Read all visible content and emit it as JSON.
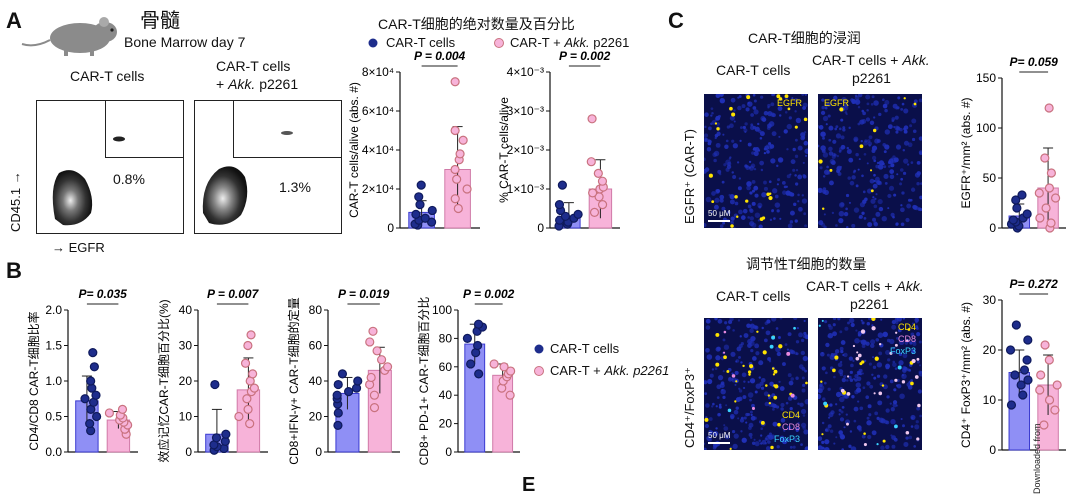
{
  "panels": {
    "A": "A",
    "B": "B",
    "C": "C",
    "E": "E"
  },
  "top": {
    "title_cn": "骨髓",
    "subtitle": "Bone Marrow day 7",
    "flow_col1": "CAR-T cells",
    "flow_col2_l1": "CAR-T cells",
    "flow_col2_l2_pre": "+ ",
    "flow_col2_l2_it": "Akk.",
    "flow_col2_l2_post": " p2261",
    "flow_pct1": "0.8%",
    "flow_pct2": "1.3%",
    "flow_yaxis": "CD45.1 →",
    "flow_xaxis": "→ EGFR"
  },
  "abs_title": "CAR-T细胞的绝对数量及百分比",
  "legend": {
    "carT": "CAR-T cells",
    "akk_pre": "CAR-T + ",
    "akk_it": "Akk.",
    "akk_post": " p2261",
    "akk_b_it": "Akk. p2261"
  },
  "colors": {
    "blue_bar": "#8f8ff5",
    "blue_dot": "#1e2d8c",
    "pink_bar": "#f7b3d9",
    "pink_dot": "#c9727f"
  },
  "chart_data": [
    {
      "id": "A1",
      "type": "bar",
      "ylabel": "CAR-T cells/alive (abs. #)",
      "pval": "P = 0.004",
      "yticks": [
        "0",
        "2×10⁴",
        "4×10⁴",
        "6×10⁴",
        "8×10⁴"
      ],
      "ylim": [
        0,
        80000
      ],
      "values": [
        8000,
        30000
      ],
      "errors": [
        6000,
        22000
      ],
      "points": [
        [
          1500,
          2000,
          3000,
          4000,
          5000,
          7000,
          9000,
          12000,
          16000,
          22000
        ],
        [
          10000,
          15000,
          20000,
          25000,
          30000,
          35000,
          38000,
          45000,
          50000,
          75000
        ]
      ]
    },
    {
      "id": "A2",
      "type": "bar",
      "ylabel": "% CAR-T cells/alive",
      "pval": "P = 0.002",
      "yticks": [
        "0",
        "1×10⁻³",
        "2×10⁻³",
        "3×10⁻³",
        "4×10⁻³"
      ],
      "ylim": [
        0,
        4
      ],
      "values": [
        0.3,
        1.0
      ],
      "errors": [
        0.35,
        0.75
      ],
      "points": [
        [
          0.05,
          0.1,
          0.15,
          0.2,
          0.25,
          0.3,
          0.35,
          0.45,
          0.6,
          1.1
        ],
        [
          0.4,
          0.6,
          0.8,
          0.9,
          1.0,
          1.05,
          1.2,
          1.4,
          1.7,
          2.8
        ]
      ]
    },
    {
      "id": "B1",
      "type": "bar",
      "ylabel": "CD4/CD8 CAR-T细胞比率",
      "pval": "P= 0.035",
      "yticks": [
        "0.0",
        "0.5",
        "1.0",
        "1.5",
        "2.0"
      ],
      "ylim": [
        0,
        2
      ],
      "values": [
        0.72,
        0.45
      ],
      "errors": [
        0.35,
        0.12
      ],
      "points": [
        [
          0.3,
          0.4,
          0.5,
          0.6,
          0.7,
          0.75,
          0.8,
          0.9,
          1.0,
          1.2,
          1.4
        ],
        [
          0.25,
          0.32,
          0.38,
          0.42,
          0.45,
          0.48,
          0.52,
          0.55,
          0.6
        ]
      ]
    },
    {
      "id": "B2",
      "type": "bar",
      "ylabel": "效应记忆CAR-T细胞百分比(%)",
      "pval": "P = 0.007",
      "yticks": [
        "0",
        "10",
        "20",
        "30",
        "40"
      ],
      "ylim": [
        0,
        40
      ],
      "values": [
        5,
        17.5
      ],
      "errors": [
        7,
        9
      ],
      "points": [
        [
          0.5,
          1,
          1.5,
          2,
          3,
          4,
          5,
          19
        ],
        [
          8,
          10,
          12,
          15,
          17,
          18,
          20,
          22,
          25,
          30,
          33
        ]
      ]
    },
    {
      "id": "B3",
      "type": "bar",
      "ylabel": "CD8+IFN-γ+ CAR-T细胞的定量",
      "pval": "P = 0.019",
      "yticks": [
        "0",
        "20",
        "40",
        "60",
        "80"
      ],
      "ylim": [
        0,
        80
      ],
      "values": [
        33,
        46
      ],
      "errors": [
        9,
        13
      ],
      "points": [
        [
          15,
          22,
          27,
          30,
          32,
          34,
          36,
          38,
          40,
          44
        ],
        [
          25,
          32,
          38,
          42,
          46,
          48,
          52,
          57,
          62,
          68
        ]
      ]
    },
    {
      "id": "B4",
      "type": "bar",
      "ylabel": "CD8+ PD-1+ CAR-T细胞百分比",
      "pval": "P = 0.002",
      "yticks": [
        "0",
        "20",
        "40",
        "60",
        "80",
        "100"
      ],
      "ylim": [
        0,
        100
      ],
      "values": [
        76,
        54
      ],
      "errors": [
        14,
        8
      ],
      "points": [
        [
          55,
          62,
          70,
          75,
          80,
          85,
          88,
          90
        ],
        [
          40,
          45,
          50,
          53,
          55,
          57,
          60,
          62
        ]
      ]
    },
    {
      "id": "C1",
      "type": "bar",
      "ylabel": "EGFR⁺/mm² (abs. #)",
      "pval": "P= 0.059",
      "yticks": [
        "0",
        "50",
        "100",
        "150"
      ],
      "ylim": [
        0,
        150
      ],
      "values": [
        12,
        40
      ],
      "errors": [
        12,
        40
      ],
      "points": [
        [
          0,
          2,
          4,
          6,
          8,
          10,
          14,
          20,
          28,
          33
        ],
        [
          0,
          5,
          10,
          20,
          30,
          35,
          40,
          55,
          70,
          120
        ]
      ]
    },
    {
      "id": "C2",
      "type": "bar",
      "ylabel": "CD4⁺ FoxP3⁺/mm² (abs. #)",
      "pval": "P= 0.272",
      "yticks": [
        "0",
        "10",
        "20",
        "30"
      ],
      "ylim": [
        0,
        30
      ],
      "values": [
        15.5,
        13
      ],
      "errors": [
        4.5,
        6
      ],
      "points": [
        [
          9,
          11,
          13,
          14,
          15,
          16,
          18,
          20,
          22,
          25
        ],
        [
          5,
          8,
          10,
          12,
          13,
          15,
          18,
          21
        ]
      ]
    }
  ],
  "c_section": {
    "title1": "CAR-T细胞的浸润",
    "col1": "CAR-T cells",
    "col2_l1": "CAR-T cells + ",
    "col2_it": "Akk.",
    "col2_l2": "p2261",
    "egfr": "EGFR",
    "row1_ylabel": "EGFR⁺ (CAR-T)",
    "scale": "50 μM",
    "title2": "调节性T细胞的数量",
    "cd4": "CD4",
    "cd8": "CD8",
    "foxp3": "FoxP3",
    "row2_ylabel": "CD4⁺/FoxP3⁺",
    "overlay": "Downloaded from"
  }
}
